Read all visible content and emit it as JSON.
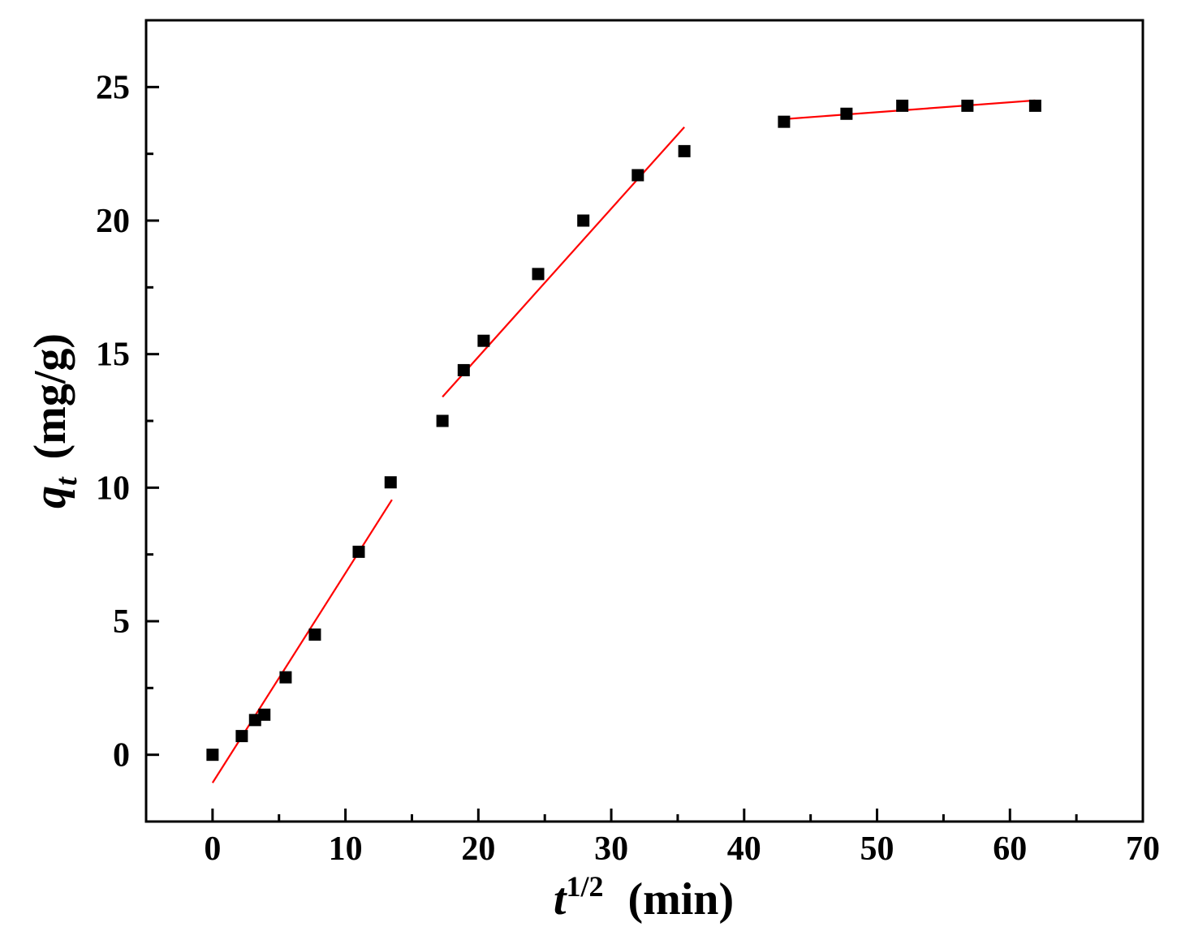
{
  "chart_data": {
    "type": "scatter",
    "title": "",
    "xlabel": {
      "base": "t",
      "sup": "1/2",
      "unit": "(min)"
    },
    "ylabel": {
      "base": "q",
      "sub": "t",
      "unit": "(mg/g)"
    },
    "xlim": [
      -5,
      70
    ],
    "ylim": [
      -2.5,
      27.5
    ],
    "xticks": [
      0,
      10,
      20,
      30,
      40,
      50,
      60,
      70
    ],
    "yticks": [
      0,
      5,
      10,
      15,
      20,
      25
    ],
    "xticks_minor": [
      -5,
      5,
      15,
      25,
      35,
      45,
      55,
      65
    ],
    "yticks_minor": [
      -2.5,
      2.5,
      7.5,
      12.5,
      17.5,
      22.5
    ],
    "grid": false,
    "legend": "none",
    "marker_color": "#000000",
    "fit_color": "#ff0000",
    "series": [
      {
        "x": [
          0,
          2.2,
          3.2,
          3.9,
          5.5,
          7.7,
          11.0,
          13.4,
          17.3,
          18.9,
          20.4,
          24.5,
          27.9,
          32.0,
          35.5,
          43.0,
          47.7,
          51.9,
          56.8,
          61.9
        ],
        "y": [
          0,
          0.7,
          1.3,
          1.5,
          2.9,
          4.5,
          7.6,
          10.2,
          12.5,
          14.4,
          15.5,
          18.0,
          20.0,
          21.7,
          22.6,
          23.7,
          24.0,
          24.3,
          24.3,
          24.3
        ]
      }
    ],
    "fit_lines": [
      {
        "x": [
          0,
          13.5
        ],
        "y": [
          -1.05,
          9.55
        ]
      },
      {
        "x": [
          17.3,
          35.5
        ],
        "y": [
          13.4,
          23.5
        ]
      },
      {
        "x": [
          43.0,
          61.9
        ],
        "y": [
          23.8,
          24.5
        ]
      }
    ]
  }
}
